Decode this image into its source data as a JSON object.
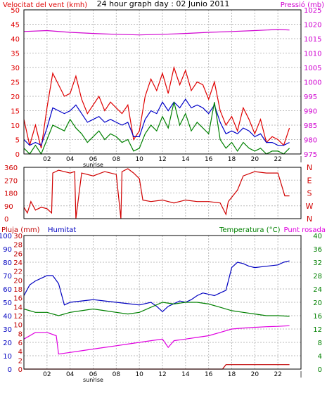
{
  "title": "24 hour graph day : 02 Junio 2011",
  "colors": {
    "wind_speed": "#e00000",
    "wind_avg": "#0000c8",
    "wind_gust": "#008000",
    "pressure": "#d000d0",
    "direction": "#d00000",
    "rain": "#c00000",
    "humidity": "#0000c0",
    "temperature": "#008000",
    "dewpoint": "#e000e0",
    "grid": "#bbbbbb",
    "frame": "#000000"
  },
  "x_ticks": [
    "02",
    "04",
    "06",
    "08",
    "10",
    "12",
    "14",
    "16",
    "18",
    "20",
    "22",
    "|"
  ],
  "sunrise_label": "sunrise",
  "chart_data": [
    {
      "type": "line",
      "name": "wind-pressure",
      "left_label": "Velocitat del vent (kmh)",
      "right_label": "Pressió (mb)",
      "left_ticks": [
        0,
        5,
        10,
        15,
        20,
        25,
        30,
        35,
        40,
        45,
        50
      ],
      "right_ticks": [
        975,
        980,
        985,
        990,
        995,
        1000,
        1005,
        1010,
        1015,
        1020,
        1025
      ],
      "left_range": [
        0,
        50
      ],
      "right_range": [
        975,
        1025
      ],
      "x_range": [
        0,
        24
      ],
      "series": [
        {
          "key": "wind_speed",
          "axis": "left",
          "x": [
            0,
            0.5,
            1,
            1.5,
            2,
            2.5,
            3,
            3.5,
            4,
            4.5,
            5,
            5.5,
            6,
            6.5,
            7,
            7.5,
            8,
            8.5,
            9,
            9.5,
            10,
            10.5,
            11,
            11.5,
            12,
            12.5,
            13,
            13.5,
            14,
            14.5,
            15,
            15.5,
            16,
            16.5,
            17,
            17.5,
            18,
            18.5,
            19,
            19.5,
            20,
            20.5,
            21,
            21.5,
            22,
            22.5,
            23
          ],
          "y": [
            12,
            3,
            10,
            2,
            16,
            28,
            24,
            20,
            21,
            27,
            19,
            14,
            17,
            20,
            15,
            18,
            16,
            14,
            17,
            5,
            8,
            20,
            26,
            22,
            28,
            21,
            30,
            24,
            29,
            22,
            25,
            24,
            19,
            25,
            15,
            10,
            13,
            8,
            16,
            12,
            7,
            12,
            4,
            6,
            5,
            3,
            9
          ]
        },
        {
          "key": "wind_avg",
          "axis": "left",
          "x": [
            0,
            0.5,
            1,
            1.5,
            2,
            2.5,
            3,
            3.5,
            4,
            4.5,
            5,
            5.5,
            6,
            6.5,
            7,
            7.5,
            8,
            8.5,
            9,
            9.5,
            10,
            10.5,
            11,
            11.5,
            12,
            12.5,
            13,
            13.5,
            14,
            14.5,
            15,
            15.5,
            16,
            16.5,
            17,
            17.5,
            18,
            18.5,
            19,
            19.5,
            20,
            20.5,
            21,
            21.5,
            22,
            22.5,
            23
          ],
          "y": [
            5,
            3,
            4,
            3,
            9,
            16,
            15,
            14,
            15,
            17,
            14,
            11,
            12,
            13,
            11,
            12,
            11,
            10,
            11,
            6,
            6,
            12,
            15,
            14,
            18,
            15,
            18,
            16,
            19,
            16,
            17,
            16,
            14,
            17,
            11,
            7,
            8,
            7,
            9,
            8,
            6,
            7,
            4,
            4,
            3,
            3,
            4
          ]
        },
        {
          "key": "wind_gust",
          "axis": "left",
          "x": [
            0,
            0.5,
            1,
            1.5,
            2,
            2.5,
            3,
            3.5,
            4,
            4.5,
            5,
            5.5,
            6,
            6.5,
            7,
            7.5,
            8,
            8.5,
            9,
            9.5,
            10,
            10.5,
            11,
            11.5,
            12,
            12.5,
            13,
            13.5,
            14,
            14.5,
            15,
            15.5,
            16,
            16.5,
            17,
            17.5,
            18,
            18.5,
            19,
            19.5,
            20,
            20.5,
            21,
            21.5,
            22,
            22.5,
            23
          ],
          "y": [
            2,
            0,
            3,
            0,
            5,
            10,
            9,
            8,
            12,
            9,
            7,
            4,
            6,
            8,
            5,
            7,
            6,
            4,
            5,
            1,
            2,
            7,
            10,
            8,
            13,
            9,
            18,
            10,
            14,
            8,
            11,
            9,
            7,
            18,
            5,
            2,
            4,
            1,
            4,
            2,
            1,
            2,
            0,
            1,
            1,
            0,
            2
          ]
        },
        {
          "key": "pressure",
          "axis": "right",
          "x": [
            0,
            2,
            4,
            6,
            8,
            10,
            12,
            14,
            16,
            18,
            20,
            22,
            23
          ],
          "y": [
            1017.5,
            1017.8,
            1017.2,
            1016.8,
            1016.5,
            1016.3,
            1016.5,
            1016.8,
            1017.2,
            1017.5,
            1017.8,
            1018.2,
            1018
          ]
        }
      ]
    },
    {
      "type": "line",
      "name": "wind-direction",
      "left_ticks": [
        0,
        90,
        180,
        270,
        360
      ],
      "right_ticks": [
        "N",
        "E",
        "S",
        "W",
        "N"
      ],
      "left_range": [
        0,
        360
      ],
      "x_range": [
        0,
        24
      ],
      "series": [
        {
          "key": "direction",
          "axis": "left",
          "x": [
            0,
            0.3,
            0.6,
            1.0,
            1.5,
            2.0,
            2.4,
            2.5,
            3,
            4,
            4.4,
            4.5,
            5,
            6,
            7,
            8,
            8.4,
            8.5,
            9,
            9.5,
            10,
            10.3,
            11,
            12,
            13,
            14,
            15,
            16,
            17,
            17.5,
            17.7,
            18,
            18.5,
            19,
            20,
            21,
            22,
            22.6,
            23
          ],
          "y": [
            80,
            40,
            120,
            60,
            80,
            70,
            40,
            320,
            340,
            320,
            330,
            0,
            320,
            300,
            330,
            310,
            0,
            330,
            350,
            320,
            280,
            130,
            120,
            130,
            110,
            130,
            120,
            120,
            110,
            30,
            120,
            150,
            200,
            300,
            330,
            320,
            320,
            160,
            160
          ]
        }
      ]
    },
    {
      "type": "line",
      "name": "rain-humidity-temperature",
      "left_label_rain": "Pluja (mm)",
      "left_label_hum": "Humitat",
      "right_label_temp": "Temperatura (°C)",
      "right_label_dew": "Punt rosada",
      "rain_ticks": [
        0,
        2,
        4,
        6,
        8,
        10,
        12,
        14,
        16,
        18,
        20,
        22,
        24,
        26,
        28,
        30
      ],
      "hum_ticks": [
        0,
        10,
        20,
        30,
        40,
        50,
        60,
        70,
        80,
        90,
        100
      ],
      "temp_ticks": [
        0,
        4,
        8,
        12,
        16,
        20,
        24,
        28,
        32,
        36,
        40
      ],
      "rain_range": [
        0,
        30
      ],
      "hum_range": [
        0,
        100
      ],
      "temp_range": [
        0,
        40
      ],
      "x_range": [
        0,
        24
      ],
      "series": [
        {
          "key": "rain",
          "axis": "rain",
          "x": [
            0,
            17.2,
            17.5,
            23
          ],
          "y": [
            0,
            0,
            1,
            1
          ]
        },
        {
          "key": "humidity",
          "axis": "hum",
          "x": [
            0,
            0.5,
            1,
            1.5,
            2,
            2.5,
            3,
            3.5,
            4,
            5,
            6,
            7,
            8,
            9,
            10,
            11,
            11.5,
            12,
            12.5,
            13,
            13.5,
            14,
            14.5,
            15,
            15.5,
            16,
            16.5,
            17,
            17.5,
            18,
            18.5,
            19,
            19.5,
            20,
            21,
            22,
            22.5,
            23
          ],
          "y": [
            55,
            63,
            66,
            68,
            70,
            70,
            64,
            48,
            50,
            51,
            52,
            51,
            50,
            49,
            48,
            50,
            47,
            43,
            47,
            49,
            51,
            50,
            52,
            55,
            57,
            56,
            55,
            57,
            59,
            76,
            80,
            79,
            77,
            76,
            77,
            78,
            80,
            81
          ]
        },
        {
          "key": "temperature",
          "axis": "temp",
          "x": [
            0,
            1,
            2,
            3,
            4,
            5,
            6,
            7,
            8,
            9,
            10,
            11,
            12,
            13,
            14,
            15,
            16,
            17,
            18,
            19,
            20,
            21,
            22,
            23
          ],
          "y": [
            18,
            17,
            17,
            16,
            17,
            17.5,
            18,
            17.5,
            17,
            16.5,
            17,
            18.5,
            20,
            19.5,
            20,
            20,
            19.5,
            18.5,
            17.5,
            17,
            16.5,
            16,
            16,
            15.8
          ]
        },
        {
          "key": "dewpoint",
          "axis": "temp",
          "x": [
            0,
            1,
            2,
            2.8,
            3,
            4,
            5,
            6,
            7,
            8,
            9,
            10,
            11,
            12,
            12.5,
            13,
            14,
            15,
            16,
            17,
            18,
            19,
            20,
            21,
            22,
            23
          ],
          "y": [
            9,
            11,
            11,
            10,
            4.5,
            5,
            5.5,
            6,
            6.5,
            7,
            7.5,
            8,
            8.5,
            9,
            6.5,
            8.5,
            9,
            9.5,
            10,
            11,
            12,
            12.3,
            12.5,
            12.7,
            12.8,
            13
          ]
        }
      ]
    }
  ]
}
